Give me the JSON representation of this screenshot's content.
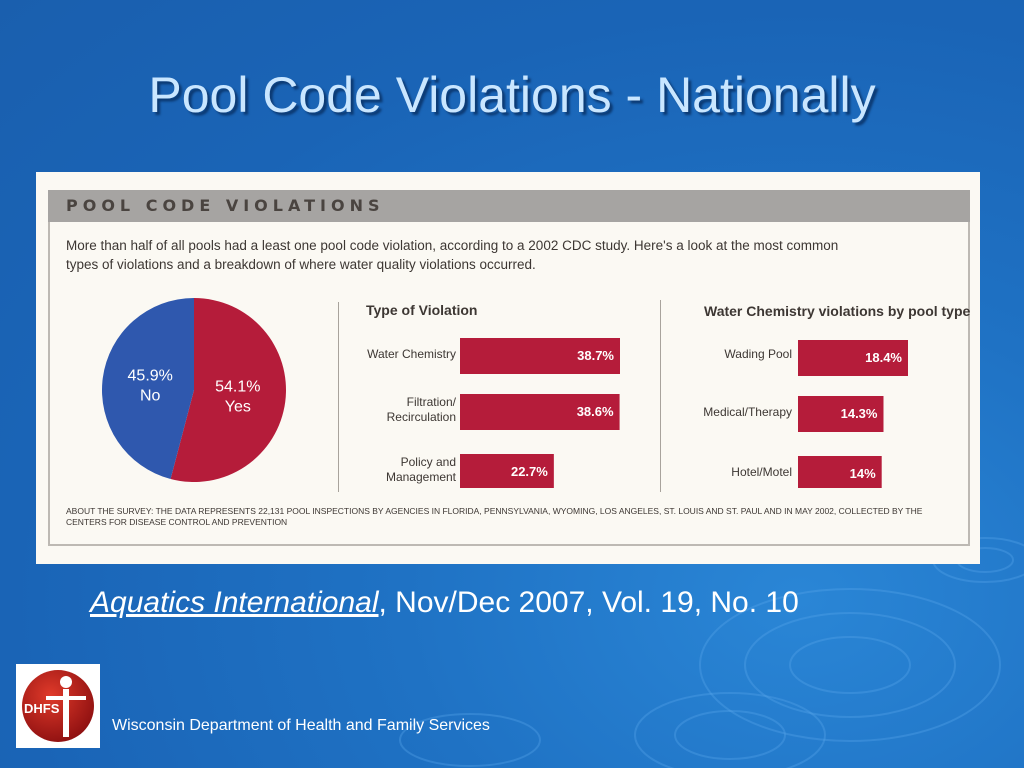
{
  "slide": {
    "title": "Pool Code Violations - Nationally",
    "citation_journal": "Aquatics International",
    "citation_rest": ", Nov/Dec 2007, Vol. 19, No. 10",
    "footer": "Wisconsin Department of Health and Family Services",
    "logo_text": "DHFS"
  },
  "figure": {
    "heading": "POOL CODE VIOLATIONS",
    "intro": "More than half of all pools had a least one pool code violation, according to a 2002 CDC study. Here's a look at the most common types of violations and a breakdown of where water quality violations occurred.",
    "survey_note": "ABOUT THE SURVEY: THE DATA REPRESENTS 22,131 POOL INSPECTIONS BY AGENCIES IN FLORIDA, PENNSYLVANIA, WYOMING, LOS ANGELES, ST. LOUIS AND ST. PAUL AND IN MAY 2002, COLLECTED BY THE CENTERS FOR DISEASE CONTROL AND PREVENTION"
  },
  "chart_data": [
    {
      "type": "pie",
      "slices": [
        {
          "label": "Yes",
          "value": 54.1,
          "display": "54.1%",
          "color": "#b51c3a"
        },
        {
          "label": "No",
          "value": 45.9,
          "display": "45.9%",
          "color": "#2f58ae"
        }
      ]
    },
    {
      "type": "bar",
      "orientation": "horizontal",
      "title": "Type of Violation",
      "categories": [
        "Water Chemistry",
        "Filtration/ Recirculation",
        "Policy and Management"
      ],
      "values": [
        38.7,
        38.6,
        22.7
      ],
      "labels": [
        "38.7%",
        "38.6%",
        "22.7%"
      ],
      "color": "#b51c3a"
    },
    {
      "type": "bar",
      "orientation": "horizontal",
      "title": "Water Chemistry violations by pool type",
      "categories": [
        "Wading Pool",
        "Medical/Therapy",
        "Hotel/Motel"
      ],
      "values": [
        18.4,
        14.3,
        14
      ],
      "labels": [
        "18.4%",
        "14.3%",
        "14%"
      ],
      "color": "#b51c3a"
    }
  ]
}
